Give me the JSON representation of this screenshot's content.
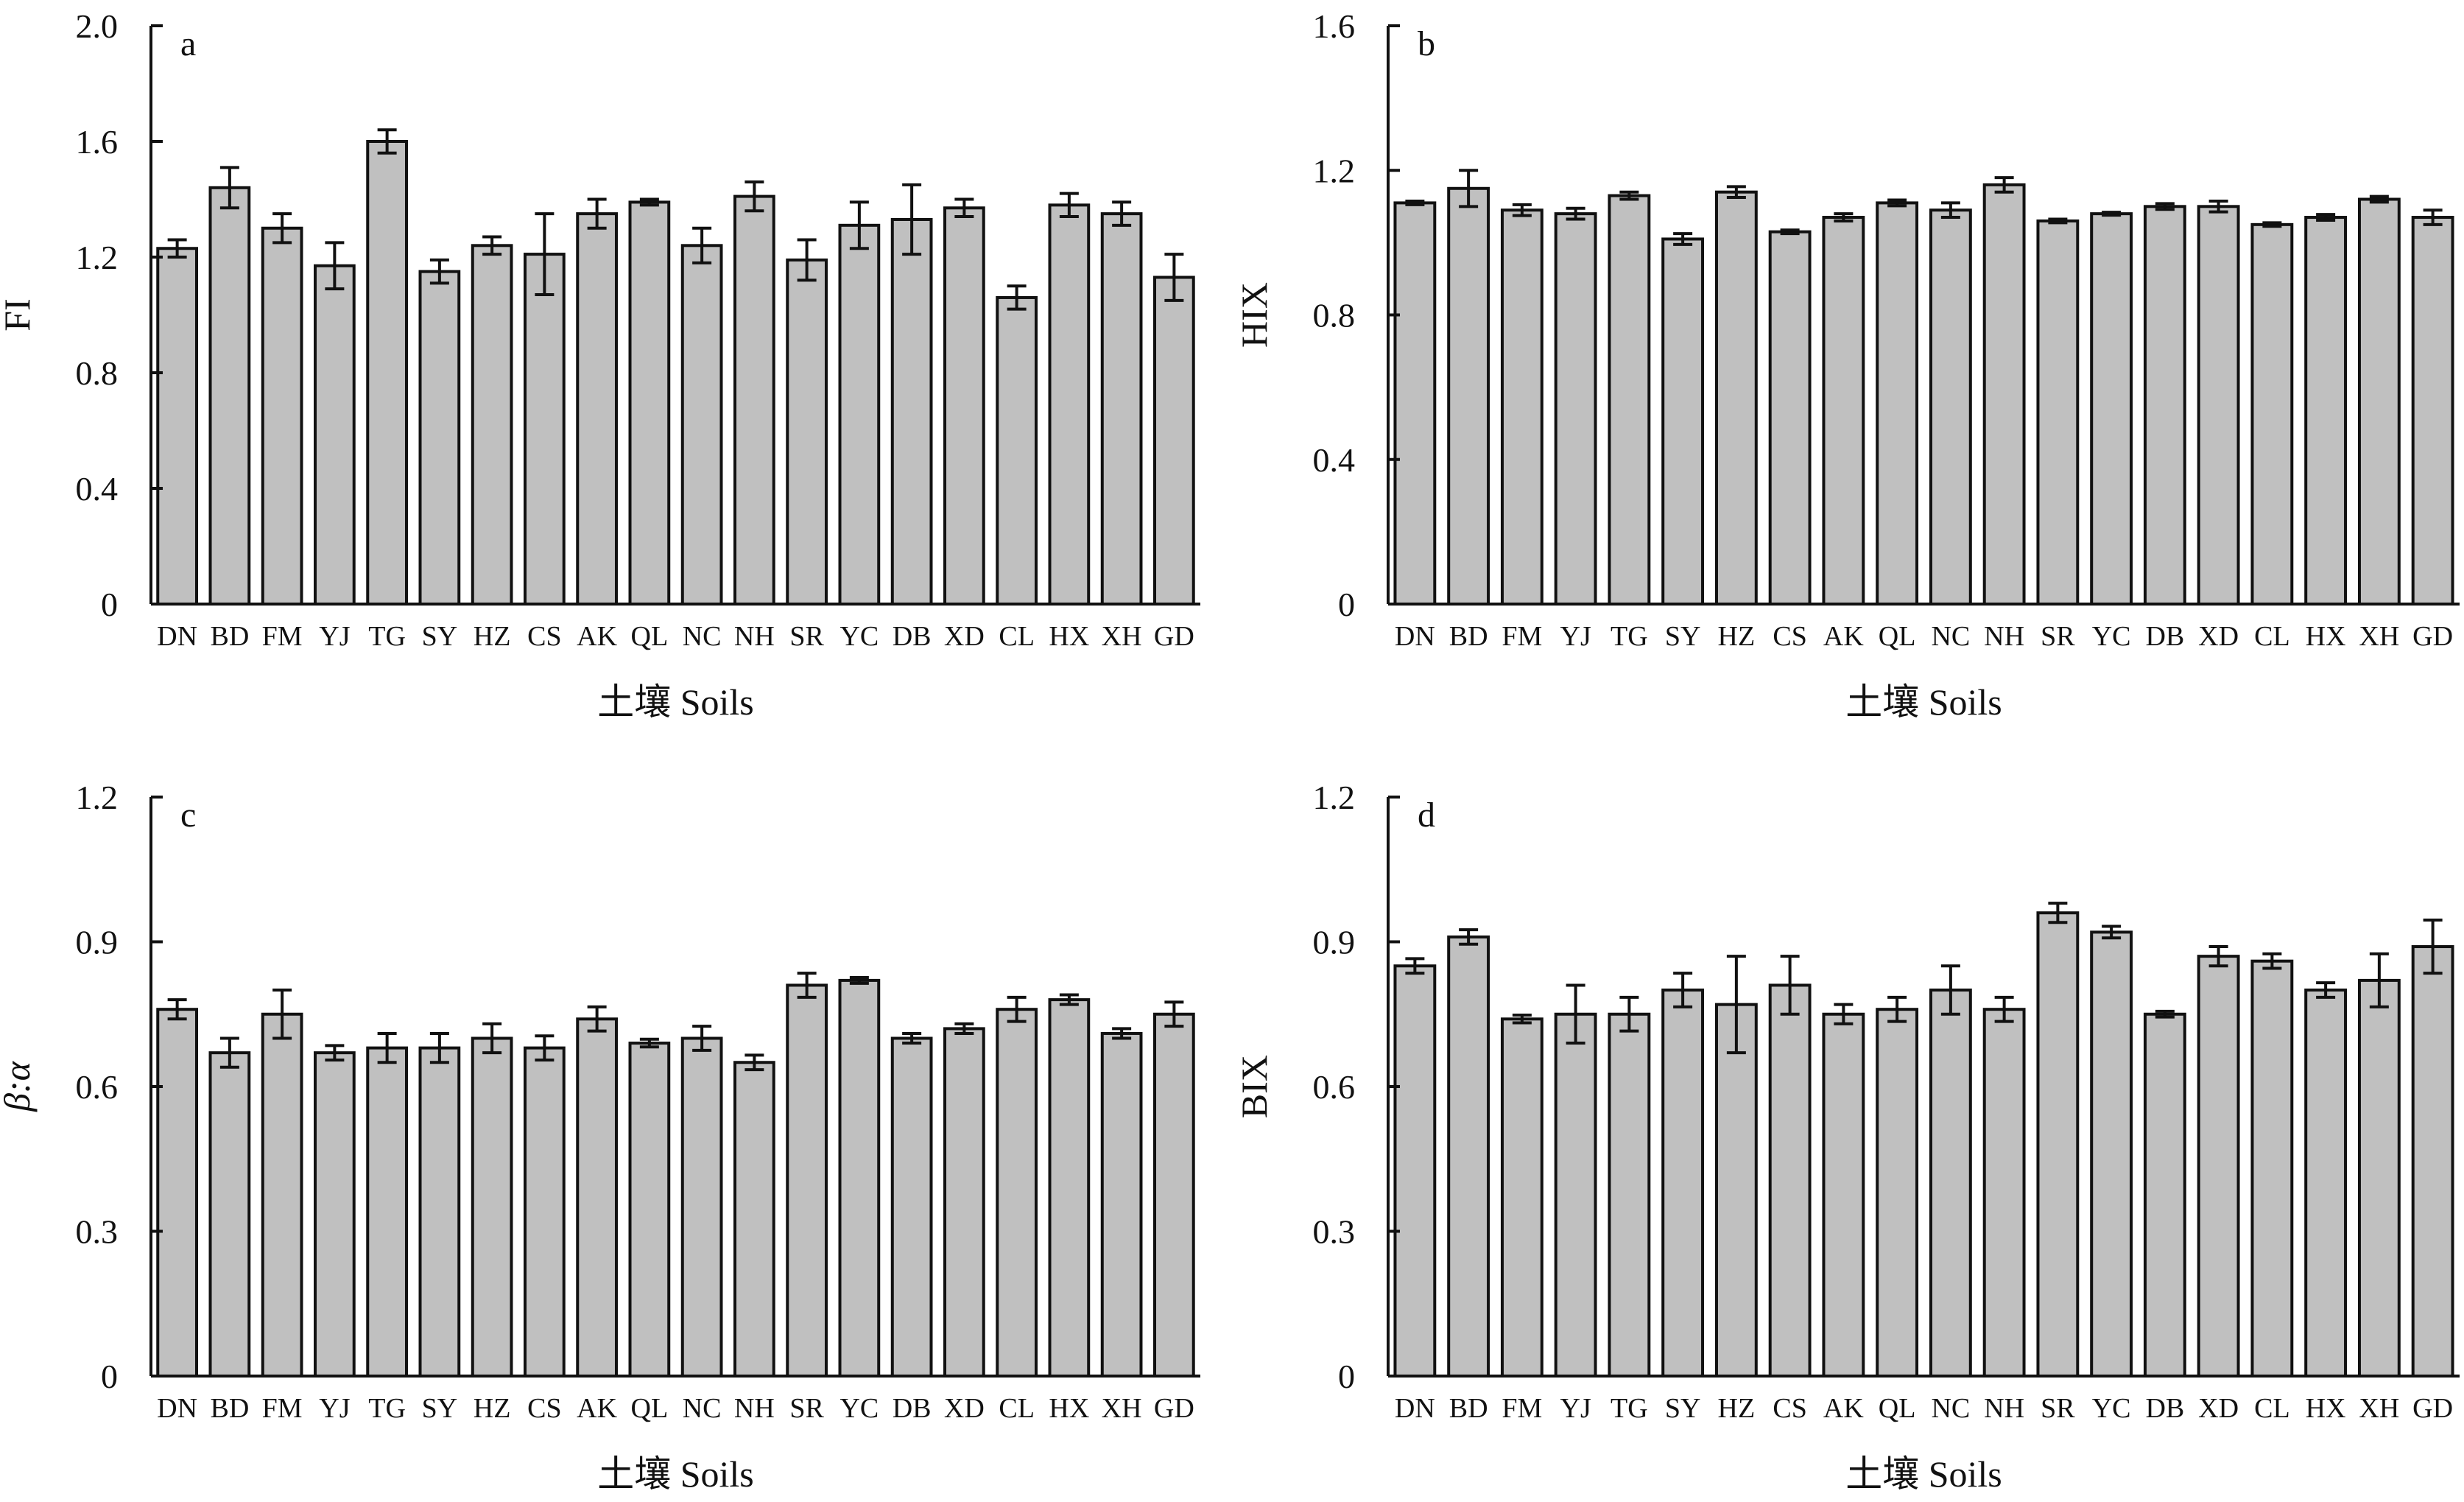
{
  "chart_data": [
    {
      "type": "bar",
      "panel_label": "a",
      "ylabel": "FI",
      "ylabel_italic": false,
      "xlabel": "土壤 Soils",
      "ylim": [
        0,
        2.0
      ],
      "yticks": [
        "0",
        "0.4",
        "0.8",
        "1.2",
        "1.6",
        "2.0"
      ],
      "ytick_values": [
        0,
        0.4,
        0.8,
        1.2,
        1.6,
        2.0
      ],
      "categories": [
        "DN",
        "BD",
        "FM",
        "YJ",
        "TG",
        "SY",
        "HZ",
        "CS",
        "AK",
        "QL",
        "NC",
        "NH",
        "SR",
        "YC",
        "DB",
        "XD",
        "CL",
        "HX",
        "XH",
        "GD"
      ],
      "values": [
        1.23,
        1.44,
        1.3,
        1.17,
        1.6,
        1.15,
        1.24,
        1.21,
        1.35,
        1.39,
        1.24,
        1.41,
        1.19,
        1.31,
        1.33,
        1.37,
        1.06,
        1.38,
        1.35,
        1.13
      ],
      "errors": [
        0.03,
        0.07,
        0.05,
        0.08,
        0.04,
        0.04,
        0.03,
        0.14,
        0.05,
        0.01,
        0.06,
        0.05,
        0.07,
        0.08,
        0.12,
        0.03,
        0.04,
        0.04,
        0.04,
        0.08
      ],
      "grid": false,
      "bar_color": "#c0c0c0"
    },
    {
      "type": "bar",
      "panel_label": "b",
      "ylabel": "HIX",
      "ylabel_italic": false,
      "xlabel": "土壤 Soils",
      "ylim": [
        0,
        1.6
      ],
      "yticks": [
        "0",
        "0.4",
        "0.8",
        "1.2",
        "1.6"
      ],
      "ytick_values": [
        0,
        0.4,
        0.8,
        1.2,
        1.6
      ],
      "categories": [
        "DN",
        "BD",
        "FM",
        "YJ",
        "TG",
        "SY",
        "HZ",
        "CS",
        "AK",
        "QL",
        "NC",
        "NH",
        "SR",
        "YC",
        "DB",
        "XD",
        "CL",
        "HX",
        "XH",
        "GD"
      ],
      "values": [
        1.11,
        1.15,
        1.09,
        1.08,
        1.13,
        1.01,
        1.14,
        1.03,
        1.07,
        1.11,
        1.09,
        1.16,
        1.06,
        1.08,
        1.1,
        1.1,
        1.05,
        1.07,
        1.12,
        1.07
      ],
      "errors": [
        0.005,
        0.05,
        0.015,
        0.015,
        0.01,
        0.015,
        0.015,
        0.005,
        0.01,
        0.008,
        0.02,
        0.02,
        0.005,
        0.004,
        0.008,
        0.015,
        0.005,
        0.008,
        0.008,
        0.02
      ],
      "grid": false,
      "bar_color": "#c0c0c0"
    },
    {
      "type": "bar",
      "panel_label": "c",
      "ylabel": "β:α",
      "ylabel_italic": true,
      "xlabel": "土壤 Soils",
      "ylim": [
        0,
        1.2
      ],
      "yticks": [
        "0",
        "0.3",
        "0.6",
        "0.9",
        "1.2"
      ],
      "ytick_values": [
        0,
        0.3,
        0.6,
        0.9,
        1.2
      ],
      "categories": [
        "DN",
        "BD",
        "FM",
        "YJ",
        "TG",
        "SY",
        "HZ",
        "CS",
        "AK",
        "QL",
        "NC",
        "NH",
        "SR",
        "YC",
        "DB",
        "XD",
        "CL",
        "HX",
        "XH",
        "GD"
      ],
      "values": [
        0.76,
        0.67,
        0.75,
        0.67,
        0.68,
        0.68,
        0.7,
        0.68,
        0.74,
        0.69,
        0.7,
        0.65,
        0.81,
        0.82,
        0.7,
        0.72,
        0.76,
        0.78,
        0.71,
        0.75
      ],
      "errors": [
        0.02,
        0.03,
        0.05,
        0.015,
        0.03,
        0.03,
        0.03,
        0.025,
        0.025,
        0.008,
        0.025,
        0.015,
        0.025,
        0.006,
        0.01,
        0.01,
        0.025,
        0.01,
        0.01,
        0.025
      ],
      "grid": false,
      "bar_color": "#c0c0c0"
    },
    {
      "type": "bar",
      "panel_label": "d",
      "ylabel": "BIX",
      "ylabel_italic": false,
      "xlabel": "土壤 Soils",
      "ylim": [
        0,
        1.2
      ],
      "yticks": [
        "0",
        "0.3",
        "0.6",
        "0.9",
        "1.2"
      ],
      "ytick_values": [
        0,
        0.3,
        0.6,
        0.9,
        1.2
      ],
      "categories": [
        "DN",
        "BD",
        "FM",
        "YJ",
        "TG",
        "SY",
        "HZ",
        "CS",
        "AK",
        "QL",
        "NC",
        "NH",
        "SR",
        "YC",
        "DB",
        "XD",
        "CL",
        "HX",
        "XH",
        "GD"
      ],
      "values": [
        0.85,
        0.91,
        0.74,
        0.75,
        0.75,
        0.8,
        0.77,
        0.81,
        0.75,
        0.76,
        0.8,
        0.76,
        0.96,
        0.92,
        0.75,
        0.87,
        0.86,
        0.8,
        0.82,
        0.89
      ],
      "errors": [
        0.015,
        0.015,
        0.008,
        0.06,
        0.035,
        0.035,
        0.1,
        0.06,
        0.02,
        0.025,
        0.05,
        0.025,
        0.02,
        0.012,
        0.006,
        0.02,
        0.015,
        0.015,
        0.055,
        0.055
      ],
      "grid": false,
      "bar_color": "#c0c0c0"
    }
  ]
}
